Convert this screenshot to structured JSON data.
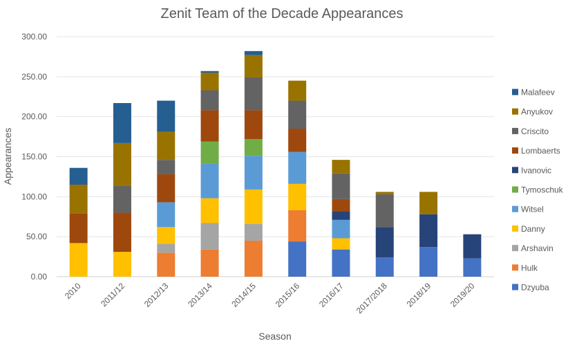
{
  "chart_data": {
    "type": "bar",
    "stacked": true,
    "title": "Zenit Team of the Decade Appearances",
    "xlabel": "Season",
    "ylabel": "Appearances",
    "ylim": [
      0,
      300
    ],
    "yticks": [
      "0.00",
      "50.00",
      "100.00",
      "150.00",
      "200.00",
      "250.00",
      "300.00"
    ],
    "ytick_values": [
      0,
      50,
      100,
      150,
      200,
      250,
      300
    ],
    "grid": true,
    "legend_position": "right",
    "categories": [
      "2010",
      "2011/12",
      "2012/13",
      "2013/14",
      "2014/15",
      "2015/16",
      "2016/17",
      "2017/2018",
      "2018/19",
      "2019/20"
    ],
    "series": [
      {
        "name": "Dzyuba",
        "color": "#4472C4",
        "values": [
          0,
          0,
          0,
          0,
          0,
          44,
          34,
          24,
          37,
          23
        ]
      },
      {
        "name": "Hulk",
        "color": "#ED7D31",
        "values": [
          0,
          0,
          30,
          34,
          45,
          39,
          0,
          0,
          0,
          0
        ]
      },
      {
        "name": "Arshavin",
        "color": "#A5A5A5",
        "values": [
          0,
          0,
          11,
          33,
          21,
          0,
          0,
          0,
          0,
          0
        ]
      },
      {
        "name": "Danny",
        "color": "#FFC000",
        "values": [
          42,
          31,
          21,
          31,
          43,
          33,
          14,
          0,
          0,
          0
        ]
      },
      {
        "name": "Witsel",
        "color": "#5B9BD5",
        "values": [
          0,
          0,
          31,
          43,
          42,
          40,
          23,
          0,
          0,
          0
        ]
      },
      {
        "name": "Tymoschuk",
        "color": "#70AD47",
        "values": [
          0,
          0,
          0,
          28,
          21,
          0,
          0,
          0,
          0,
          0
        ]
      },
      {
        "name": "Ivanovic",
        "color": "#264478",
        "values": [
          0,
          0,
          0,
          0,
          0,
          0,
          11,
          38,
          41,
          30
        ]
      },
      {
        "name": "Lombaerts",
        "color": "#9E480E",
        "values": [
          37,
          49,
          35,
          39,
          36,
          29,
          15,
          0,
          0,
          0
        ]
      },
      {
        "name": "Criscito",
        "color": "#636363",
        "values": [
          0,
          34,
          18,
          25,
          41,
          35,
          32,
          41,
          0,
          0
        ]
      },
      {
        "name": "Anyukov",
        "color": "#997300",
        "values": [
          36,
          53,
          35,
          22,
          28,
          25,
          17,
          3,
          28,
          0
        ]
      },
      {
        "name": "Malafeev",
        "color": "#255E91",
        "values": [
          21,
          50,
          39,
          2,
          5,
          0,
          0,
          0,
          0,
          0
        ]
      }
    ],
    "legend_order": [
      "Malafeev",
      "Anyukov",
      "Criscito",
      "Lombaerts",
      "Ivanovic",
      "Tymoschuk",
      "Witsel",
      "Danny",
      "Arshavin",
      "Hulk",
      "Dzyuba"
    ]
  }
}
